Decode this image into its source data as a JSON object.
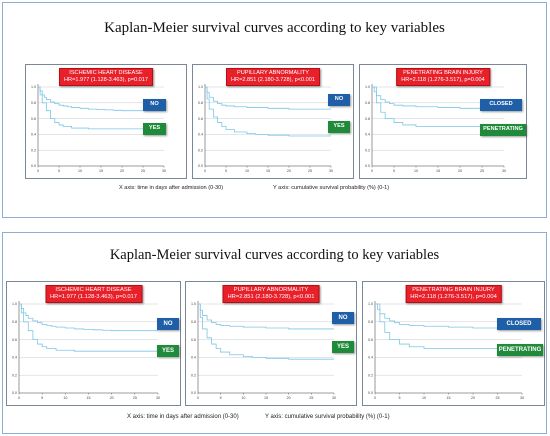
{
  "figures": [
    {
      "title": "Kaplan-Meier survival curves according to key variables",
      "x_axis_caption": "X axis: time in days after admission (0-30)",
      "y_axis_caption": "Y axis: cumulative  survival probability (%) (0-1)"
    },
    {
      "title": "Kaplan-Meier survival curves according to key variables",
      "x_axis_caption": "X axis: time in days after admission (0-30)",
      "y_axis_caption": "Y axis: cumulative  survival probability (%) (0-1)"
    }
  ],
  "colors": {
    "curve": "#7cc6e6",
    "hr_box": "#e8202a",
    "badge_blue": "#1f5fa8",
    "badge_green": "#1f8a3a"
  },
  "chart_data": [
    {
      "type": "line",
      "title": "ISCHEMIC HEART DISEASE",
      "subtitle": "HR=1.977 (1.128-3.463), p=0.017",
      "xlim": [
        0,
        30
      ],
      "ylim": [
        0,
        1
      ],
      "x_ticks": [
        "0",
        "5",
        "10",
        "15",
        "20",
        "25",
        "30"
      ],
      "y_ticks": [
        "0.0",
        "0.2",
        "0.4",
        "0.6",
        "0.8",
        "1.0"
      ],
      "series": [
        {
          "name": "NO",
          "x": [
            0,
            0.5,
            1,
            1.5,
            2,
            3,
            4,
            5,
            6,
            7,
            8,
            10,
            12,
            14,
            16,
            18,
            20,
            25,
            30
          ],
          "y": [
            1.0,
            0.95,
            0.9,
            0.87,
            0.84,
            0.81,
            0.79,
            0.77,
            0.76,
            0.75,
            0.74,
            0.73,
            0.72,
            0.715,
            0.71,
            0.705,
            0.7,
            0.7,
            0.7
          ]
        },
        {
          "name": "YES",
          "x": [
            0,
            0.5,
            1,
            2,
            3,
            4,
            5,
            6,
            8,
            12,
            30
          ],
          "y": [
            1.0,
            0.9,
            0.8,
            0.7,
            0.6,
            0.55,
            0.52,
            0.5,
            0.48,
            0.47,
            0.47
          ]
        }
      ]
    },
    {
      "type": "line",
      "title": "PUPILLARY ABNORMALITY",
      "subtitle": "HR=2.851 (2.180-3.728), p<0.001",
      "xlim": [
        0,
        30
      ],
      "ylim": [
        0,
        1
      ],
      "x_ticks": [
        "0",
        "5",
        "10",
        "15",
        "20",
        "25",
        "30"
      ],
      "y_ticks": [
        "0.0",
        "0.2",
        "0.4",
        "0.6",
        "0.8",
        "1.0"
      ],
      "series": [
        {
          "name": "NO",
          "x": [
            0,
            0.5,
            1,
            2,
            3,
            4,
            5,
            7,
            10,
            15,
            20,
            30
          ],
          "y": [
            1.0,
            0.93,
            0.87,
            0.82,
            0.79,
            0.77,
            0.76,
            0.75,
            0.74,
            0.73,
            0.72,
            0.72
          ]
        },
        {
          "name": "YES",
          "x": [
            0,
            0.5,
            1,
            2,
            3,
            4,
            5,
            7,
            10,
            12,
            15,
            20,
            30
          ],
          "y": [
            1.0,
            0.85,
            0.72,
            0.62,
            0.55,
            0.5,
            0.46,
            0.43,
            0.41,
            0.4,
            0.39,
            0.38,
            0.38
          ]
        }
      ]
    },
    {
      "type": "line",
      "title": "PENETRATING BRAIN INJURY",
      "subtitle": "HR=2.118 (1.276-3.517), p=0.004",
      "xlim": [
        0,
        30
      ],
      "ylim": [
        0,
        1
      ],
      "x_ticks": [
        "0",
        "5",
        "10",
        "15",
        "20",
        "25",
        "30"
      ],
      "y_ticks": [
        "0.0",
        "0.2",
        "0.4",
        "0.6",
        "0.8",
        "1.0"
      ],
      "series": [
        {
          "name": "CLOSED",
          "x": [
            0,
            0.5,
            1,
            2,
            3,
            4,
            5,
            7,
            10,
            15,
            20,
            30
          ],
          "y": [
            1.0,
            0.94,
            0.89,
            0.84,
            0.81,
            0.79,
            0.77,
            0.76,
            0.75,
            0.74,
            0.73,
            0.73
          ]
        },
        {
          "name": "PENETRATING",
          "x": [
            0,
            1,
            2,
            3,
            5,
            7,
            10,
            30
          ],
          "y": [
            1.0,
            0.8,
            0.68,
            0.6,
            0.55,
            0.52,
            0.5,
            0.5
          ]
        }
      ]
    }
  ]
}
